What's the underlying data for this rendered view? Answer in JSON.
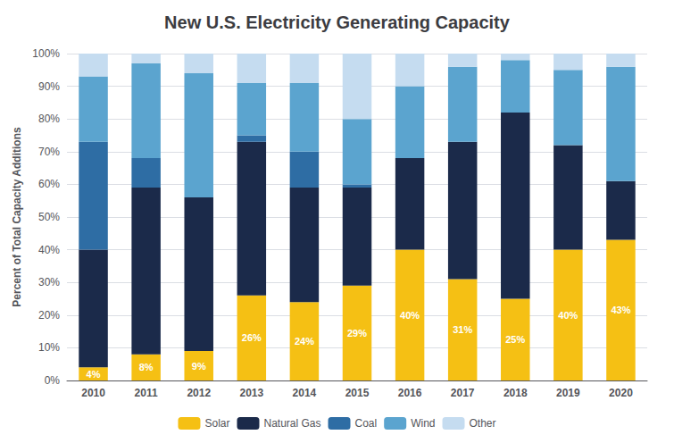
{
  "chart_data": {
    "type": "bar",
    "title": "New U.S. Electricity Generating Capacity",
    "ylabel": "Percent of Total Capacity Additions",
    "categories": [
      "2010",
      "2011",
      "2012",
      "2013",
      "2014",
      "2015",
      "2016",
      "2017",
      "2018",
      "2019",
      "2020"
    ],
    "series": [
      {
        "name": "Solar",
        "color": "#F5C014",
        "values": [
          4,
          8,
          9,
          26,
          24,
          29,
          40,
          31,
          25,
          40,
          43
        ],
        "data_labels": true,
        "value_labels": [
          "4%",
          "8%",
          "9%",
          "26%",
          "24%",
          "29%",
          "40%",
          "31%",
          "25%",
          "40%",
          "43%"
        ]
      },
      {
        "name": "Natural Gas",
        "color": "#1B2A4A",
        "values": [
          36,
          51,
          47,
          47,
          35,
          30,
          28,
          42,
          57,
          32,
          18
        ]
      },
      {
        "name": "Coal",
        "color": "#2E6DA4",
        "values": [
          33,
          9,
          0,
          2,
          11,
          1,
          0,
          0,
          0,
          0,
          0
        ]
      },
      {
        "name": "Wind",
        "color": "#5BA4CF",
        "values": [
          20,
          29,
          38,
          16,
          21,
          20,
          22,
          23,
          16,
          23,
          35
        ]
      },
      {
        "name": "Other",
        "color": "#C5DCF0",
        "values": [
          7,
          3,
          6,
          9,
          9,
          20,
          10,
          4,
          2,
          5,
          4
        ]
      }
    ],
    "stacked": true,
    "ylim": [
      0,
      100
    ],
    "yticks": [
      {
        "value": 0,
        "label": "0%"
      },
      {
        "value": 10,
        "label": "10%"
      },
      {
        "value": 20,
        "label": "20%"
      },
      {
        "value": 30,
        "label": "30%"
      },
      {
        "value": 40,
        "label": "40%"
      },
      {
        "value": 50,
        "label": "50%"
      },
      {
        "value": 60,
        "label": "60%"
      },
      {
        "value": 70,
        "label": "70%"
      },
      {
        "value": 80,
        "label": "80%"
      },
      {
        "value": 90,
        "label": "90%"
      },
      {
        "value": 100,
        "label": "100%"
      }
    ],
    "grid": true,
    "legend": "bottom"
  }
}
